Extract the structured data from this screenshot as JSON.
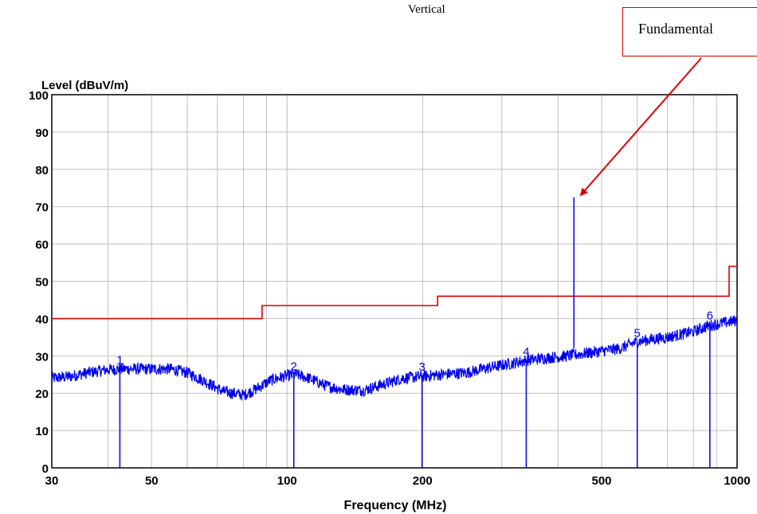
{
  "header": {
    "polarization": "Vertical",
    "callout": "Fundamental"
  },
  "colors": {
    "trace": "#0000ee",
    "limit": "#dd0000",
    "grid": "#c0c0c0",
    "annotation_arrow": "#dd0000"
  },
  "chart_data": {
    "type": "line",
    "title": "",
    "xlabel": "Frequency (MHz)",
    "ylabel": "Level (dBuV/m)",
    "xscale": "log",
    "xlim": [
      30,
      1000
    ],
    "ylim": [
      0,
      100
    ],
    "grid": true,
    "xticks": [
      30,
      50,
      100,
      200,
      500,
      1000
    ],
    "xgrid": [
      30,
      40,
      50,
      60,
      70,
      80,
      90,
      100,
      200,
      300,
      400,
      500,
      600,
      700,
      800,
      900,
      1000
    ],
    "yticks": [
      0,
      10,
      20,
      30,
      40,
      50,
      60,
      70,
      80,
      90,
      100
    ],
    "series": [
      {
        "kind": "trace",
        "points": [
          [
            30,
            24
          ],
          [
            33,
            24.5
          ],
          [
            36,
            25.5
          ],
          [
            40,
            26.3
          ],
          [
            43,
            26.5
          ],
          [
            48,
            26.5
          ],
          [
            55,
            26.5
          ],
          [
            60,
            25.5
          ],
          [
            65,
            23.5
          ],
          [
            72,
            20.5
          ],
          [
            80,
            19.5
          ],
          [
            85,
            21
          ],
          [
            92,
            23.5
          ],
          [
            100,
            24.7
          ],
          [
            105,
            25
          ],
          [
            112,
            24
          ],
          [
            122,
            22
          ],
          [
            133,
            21
          ],
          [
            148,
            20.8
          ],
          [
            165,
            22.5
          ],
          [
            180,
            24
          ],
          [
            200,
            24.5
          ],
          [
            220,
            25
          ],
          [
            250,
            25.5
          ],
          [
            280,
            26.8
          ],
          [
            310,
            27.8
          ],
          [
            340,
            28.8
          ],
          [
            380,
            29.5
          ],
          [
            420,
            30
          ],
          [
            480,
            31
          ],
          [
            550,
            32
          ],
          [
            600,
            33.8
          ],
          [
            650,
            34.5
          ],
          [
            700,
            35
          ],
          [
            800,
            36.5
          ],
          [
            860,
            38
          ],
          [
            900,
            38.5
          ],
          [
            1000,
            39.5
          ]
        ]
      },
      {
        "kind": "limit",
        "points": [
          [
            30,
            40
          ],
          [
            88,
            40
          ],
          [
            88,
            43.5
          ],
          [
            216,
            43.5
          ],
          [
            216,
            46
          ],
          [
            960,
            46
          ],
          [
            960,
            54
          ],
          [
            1000,
            54
          ]
        ]
      }
    ],
    "markers": [
      {
        "label": "1",
        "freq": 42.5,
        "level": 26.5
      },
      {
        "label": "2",
        "freq": 103.5,
        "level": 24.8
      },
      {
        "label": "3",
        "freq": 199.5,
        "level": 24.7
      },
      {
        "label": "4",
        "freq": 340,
        "level": 28.8
      },
      {
        "label": "5",
        "freq": 600,
        "level": 33.8
      },
      {
        "label": "6",
        "freq": 870,
        "level": 38.5
      }
    ],
    "spikes": [
      {
        "freq": 433.9,
        "level": 72.5
      }
    ]
  }
}
